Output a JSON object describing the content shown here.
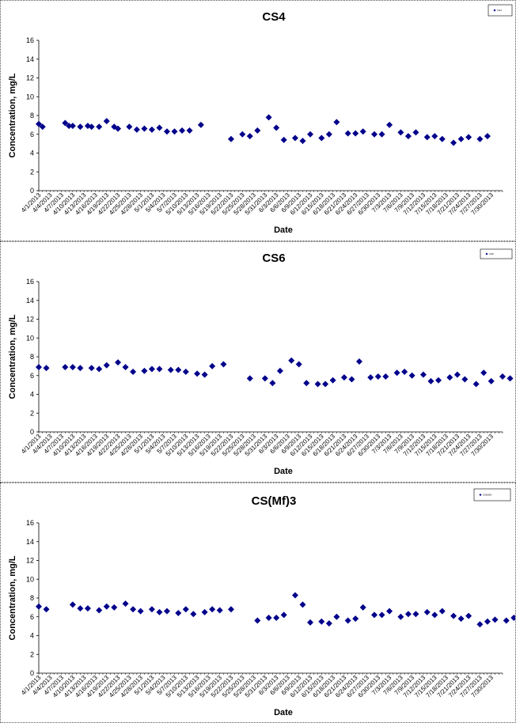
{
  "chart_data": [
    {
      "type": "scatter",
      "title": "CS4",
      "xlabel": "Date",
      "ylabel": "Concentration, mg/L",
      "ylim": [
        0,
        16
      ],
      "ytick_step": 2,
      "x_range": [
        "4/1/2013",
        "8/2/2013"
      ],
      "xtick_labels": [
        "4/1/2013",
        "4/4/2013",
        "4/7/2013",
        "4/10/2013",
        "4/13/2013",
        "4/16/2013",
        "4/19/2013",
        "4/22/2013",
        "4/25/2013",
        "4/28/2013",
        "5/1/2013",
        "5/4/2013",
        "5/7/2013",
        "5/10/2013",
        "5/13/2013",
        "5/16/2013",
        "5/19/2013",
        "5/22/2013",
        "5/25/2013",
        "5/28/2013",
        "5/31/2013",
        "6/3/2013",
        "6/6/2013",
        "6/9/2013",
        "6/12/2013",
        "6/15/2013",
        "6/18/2013",
        "6/21/2013",
        "6/24/2013",
        "6/27/2013",
        "6/30/2013",
        "7/3/2013",
        "7/6/2013",
        "7/9/2013",
        "7/12/2013",
        "7/15/2013",
        "7/18/2013",
        "7/21/2013",
        "7/24/2013",
        "7/27/2013",
        "7/30/2013"
      ],
      "legend": {
        "position": "top-right",
        "entry": "CS4"
      },
      "marker_color": "#00008B",
      "series": [
        {
          "name": "CS4",
          "points": [
            {
              "x": "4/1/2013",
              "y": 7.1
            },
            {
              "x": "4/2/2013",
              "y": 6.8
            },
            {
              "x": "4/8/2013",
              "y": 7.2
            },
            {
              "x": "4/9/2013",
              "y": 6.9
            },
            {
              "x": "4/10/2013",
              "y": 6.9
            },
            {
              "x": "4/12/2013",
              "y": 6.8
            },
            {
              "x": "4/14/2013",
              "y": 6.9
            },
            {
              "x": "4/15/2013",
              "y": 6.8
            },
            {
              "x": "4/17/2013",
              "y": 6.8
            },
            {
              "x": "4/19/2013",
              "y": 7.4
            },
            {
              "x": "4/21/2013",
              "y": 6.8
            },
            {
              "x": "4/22/2013",
              "y": 6.6
            },
            {
              "x": "4/25/2013",
              "y": 6.8
            },
            {
              "x": "4/27/2013",
              "y": 6.5
            },
            {
              "x": "4/29/2013",
              "y": 6.6
            },
            {
              "x": "5/1/2013",
              "y": 6.5
            },
            {
              "x": "5/3/2013",
              "y": 6.7
            },
            {
              "x": "5/5/2013",
              "y": 6.3
            },
            {
              "x": "5/7/2013",
              "y": 6.3
            },
            {
              "x": "5/9/2013",
              "y": 6.4
            },
            {
              "x": "5/11/2013",
              "y": 6.4
            },
            {
              "x": "5/14/2013",
              "y": 7.0
            },
            {
              "x": "5/22/2013",
              "y": 5.5
            },
            {
              "x": "5/25/2013",
              "y": 6.0
            },
            {
              "x": "5/27/2013",
              "y": 5.8
            },
            {
              "x": "5/29/2013",
              "y": 6.4
            },
            {
              "x": "6/1/2013",
              "y": 7.8
            },
            {
              "x": "6/3/2013",
              "y": 6.7
            },
            {
              "x": "6/5/2013",
              "y": 5.4
            },
            {
              "x": "6/8/2013",
              "y": 5.6
            },
            {
              "x": "6/10/2013",
              "y": 5.3
            },
            {
              "x": "6/12/2013",
              "y": 6.0
            },
            {
              "x": "6/15/2013",
              "y": 5.6
            },
            {
              "x": "6/17/2013",
              "y": 6.0
            },
            {
              "x": "6/19/2013",
              "y": 7.3
            },
            {
              "x": "6/22/2013",
              "y": 6.1
            },
            {
              "x": "6/24/2013",
              "y": 6.1
            },
            {
              "x": "6/26/2013",
              "y": 6.3
            },
            {
              "x": "6/29/2013",
              "y": 6.0
            },
            {
              "x": "7/1/2013",
              "y": 6.0
            },
            {
              "x": "7/3/2013",
              "y": 7.0
            },
            {
              "x": "7/6/2013",
              "y": 6.2
            },
            {
              "x": "7/8/2013",
              "y": 5.8
            },
            {
              "x": "7/10/2013",
              "y": 6.2
            },
            {
              "x": "7/13/2013",
              "y": 5.7
            },
            {
              "x": "7/15/2013",
              "y": 5.8
            },
            {
              "x": "7/17/2013",
              "y": 5.5
            },
            {
              "x": "7/20/2013",
              "y": 5.1
            },
            {
              "x": "7/22/2013",
              "y": 5.5
            },
            {
              "x": "7/24/2013",
              "y": 5.7
            },
            {
              "x": "7/27/2013",
              "y": 5.5
            },
            {
              "x": "7/29/2013",
              "y": 5.8
            }
          ]
        }
      ]
    },
    {
      "type": "scatter",
      "title": "CS6",
      "xlabel": "Date",
      "ylabel": "Concentration, mg/L",
      "ylim": [
        0,
        16
      ],
      "ytick_step": 2,
      "x_range": [
        "4/1/2013",
        "8/2/2013"
      ],
      "xtick_labels": [
        "4/1/2013",
        "4/4/2013",
        "4/7/2013",
        "4/10/2013",
        "4/13/2013",
        "4/16/2013",
        "4/19/2013",
        "4/22/2013",
        "4/25/2013",
        "4/28/2013",
        "5/1/2013",
        "5/4/2013",
        "5/7/2013",
        "5/10/2013",
        "5/13/2013",
        "5/16/2013",
        "5/19/2013",
        "5/22/2013",
        "5/25/2013",
        "5/28/2013",
        "5/31/2013",
        "6/3/2013",
        "6/6/2013",
        "6/9/2013",
        "6/12/2013",
        "6/15/2013",
        "6/18/2013",
        "6/21/2013",
        "6/24/2013",
        "6/27/2013",
        "6/30/2013",
        "7/3/2013",
        "7/6/2013",
        "7/9/2013",
        "7/12/2013",
        "7/15/2013",
        "7/18/2013",
        "7/21/2013",
        "7/24/2013",
        "7/27/2013",
        "7/30/2013"
      ],
      "legend": {
        "position": "top-right",
        "entry": "CS6"
      },
      "marker_color": "#00008B",
      "series": [
        {
          "name": "CS6",
          "points": [
            {
              "x": "4/1/2013",
              "y": 6.9
            },
            {
              "x": "4/3/2013",
              "y": 6.8
            },
            {
              "x": "4/8/2013",
              "y": 6.9
            },
            {
              "x": "4/10/2013",
              "y": 6.9
            },
            {
              "x": "4/12/2013",
              "y": 6.8
            },
            {
              "x": "4/15/2013",
              "y": 6.8
            },
            {
              "x": "4/17/2013",
              "y": 6.7
            },
            {
              "x": "4/19/2013",
              "y": 7.1
            },
            {
              "x": "4/22/2013",
              "y": 7.4
            },
            {
              "x": "4/24/2013",
              "y": 6.9
            },
            {
              "x": "4/26/2013",
              "y": 6.4
            },
            {
              "x": "4/29/2013",
              "y": 6.5
            },
            {
              "x": "5/1/2013",
              "y": 6.7
            },
            {
              "x": "5/3/2013",
              "y": 6.7
            },
            {
              "x": "5/6/2013",
              "y": 6.6
            },
            {
              "x": "5/8/2013",
              "y": 6.6
            },
            {
              "x": "5/10/2013",
              "y": 6.4
            },
            {
              "x": "5/13/2013",
              "y": 6.2
            },
            {
              "x": "5/15/2013",
              "y": 6.1
            },
            {
              "x": "5/17/2013",
              "y": 7.0
            },
            {
              "x": "5/20/2013",
              "y": 7.2
            },
            {
              "x": "5/27/2013",
              "y": 5.7
            },
            {
              "x": "5/31/2013",
              "y": 5.7
            },
            {
              "x": "6/2/2013",
              "y": 5.2
            },
            {
              "x": "6/4/2013",
              "y": 6.5
            },
            {
              "x": "6/7/2013",
              "y": 7.6
            },
            {
              "x": "6/9/2013",
              "y": 7.2
            },
            {
              "x": "6/11/2013",
              "y": 5.2
            },
            {
              "x": "6/14/2013",
              "y": 5.1
            },
            {
              "x": "6/16/2013",
              "y": 5.1
            },
            {
              "x": "6/18/2013",
              "y": 5.5
            },
            {
              "x": "6/21/2013",
              "y": 5.8
            },
            {
              "x": "6/23/2013",
              "y": 5.6
            },
            {
              "x": "6/25/2013",
              "y": 7.5
            },
            {
              "x": "6/28/2013",
              "y": 5.8
            },
            {
              "x": "6/30/2013",
              "y": 5.9
            },
            {
              "x": "7/2/2013",
              "y": 5.9
            },
            {
              "x": "7/5/2013",
              "y": 6.3
            },
            {
              "x": "7/7/2013",
              "y": 6.4
            },
            {
              "x": "7/9/2013",
              "y": 6.0
            },
            {
              "x": "7/12/2013",
              "y": 6.1
            },
            {
              "x": "7/14/2013",
              "y": 5.4
            },
            {
              "x": "7/16/2013",
              "y": 5.5
            },
            {
              "x": "7/19/2013",
              "y": 5.8
            },
            {
              "x": "7/21/2013",
              "y": 6.1
            },
            {
              "x": "7/23/2013",
              "y": 5.6
            },
            {
              "x": "7/26/2013",
              "y": 5.1
            },
            {
              "x": "7/28/2013",
              "y": 6.3
            },
            {
              "x": "7/30/2013",
              "y": 5.4
            },
            {
              "x": "8/2/2013",
              "y": 5.9
            },
            {
              "x": "8/4/2013",
              "y": 5.7
            }
          ]
        }
      ]
    },
    {
      "type": "scatter",
      "title": "CS(Mf)3",
      "xlabel": "Date",
      "ylabel": "Concentration, mg/L",
      "ylim": [
        0,
        16
      ],
      "ytick_step": 2,
      "x_range": [
        "4/1/2013",
        "8/2/2013"
      ],
      "xtick_labels": [
        "4/1/2013",
        "4/4/2013",
        "4/7/2013",
        "4/10/2013",
        "4/13/2013",
        "4/16/2013",
        "4/19/2013",
        "4/22/2013",
        "4/25/2013",
        "4/28/2013",
        "5/1/2013",
        "5/4/2013",
        "5/7/2013",
        "5/10/2013",
        "5/13/2013",
        "5/16/2013",
        "5/19/2013",
        "5/22/2013",
        "5/25/2013",
        "5/28/2013",
        "5/31/2013",
        "6/3/2013",
        "6/6/2013",
        "6/9/2013",
        "6/12/2013",
        "6/15/2013",
        "6/18/2013",
        "6/21/2013",
        "6/24/2013",
        "6/27/2013",
        "6/30/2013",
        "7/3/2013",
        "7/6/2013",
        "7/9/2013",
        "7/12/2013",
        "7/15/2013",
        "7/18/2013",
        "7/21/2013",
        "7/24/2013",
        "7/27/2013",
        "7/30/2013"
      ],
      "legend": {
        "position": "top-right",
        "entry": "CS(Mf)3"
      },
      "marker_color": "#00008B",
      "series": [
        {
          "name": "CS(Mf)3",
          "points": [
            {
              "x": "4/1/2013",
              "y": 7.1
            },
            {
              "x": "4/3/2013",
              "y": 6.8
            },
            {
              "x": "4/10/2013",
              "y": 7.3
            },
            {
              "x": "4/12/2013",
              "y": 6.9
            },
            {
              "x": "4/14/2013",
              "y": 6.9
            },
            {
              "x": "4/17/2013",
              "y": 6.7
            },
            {
              "x": "4/19/2013",
              "y": 7.1
            },
            {
              "x": "4/21/2013",
              "y": 7.0
            },
            {
              "x": "4/24/2013",
              "y": 7.4
            },
            {
              "x": "4/26/2013",
              "y": 6.8
            },
            {
              "x": "4/28/2013",
              "y": 6.6
            },
            {
              "x": "5/1/2013",
              "y": 6.8
            },
            {
              "x": "5/3/2013",
              "y": 6.5
            },
            {
              "x": "5/5/2013",
              "y": 6.6
            },
            {
              "x": "5/8/2013",
              "y": 6.4
            },
            {
              "x": "5/10/2013",
              "y": 6.8
            },
            {
              "x": "5/12/2013",
              "y": 6.3
            },
            {
              "x": "5/15/2013",
              "y": 6.5
            },
            {
              "x": "5/17/2013",
              "y": 6.8
            },
            {
              "x": "5/19/2013",
              "y": 6.7
            },
            {
              "x": "5/22/2013",
              "y": 6.8
            },
            {
              "x": "5/29/2013",
              "y": 5.6
            },
            {
              "x": "6/1/2013",
              "y": 5.9
            },
            {
              "x": "6/3/2013",
              "y": 5.9
            },
            {
              "x": "6/5/2013",
              "y": 6.2
            },
            {
              "x": "6/8/2013",
              "y": 8.3
            },
            {
              "x": "6/10/2013",
              "y": 7.3
            },
            {
              "x": "6/12/2013",
              "y": 5.4
            },
            {
              "x": "6/15/2013",
              "y": 5.5
            },
            {
              "x": "6/17/2013",
              "y": 5.3
            },
            {
              "x": "6/19/2013",
              "y": 6.0
            },
            {
              "x": "6/22/2013",
              "y": 5.6
            },
            {
              "x": "6/24/2013",
              "y": 5.8
            },
            {
              "x": "6/26/2013",
              "y": 7.0
            },
            {
              "x": "6/29/2013",
              "y": 6.2
            },
            {
              "x": "7/1/2013",
              "y": 6.2
            },
            {
              "x": "7/3/2013",
              "y": 6.6
            },
            {
              "x": "7/6/2013",
              "y": 6.0
            },
            {
              "x": "7/8/2013",
              "y": 6.3
            },
            {
              "x": "7/10/2013",
              "y": 6.3
            },
            {
              "x": "7/13/2013",
              "y": 6.5
            },
            {
              "x": "7/15/2013",
              "y": 6.2
            },
            {
              "x": "7/17/2013",
              "y": 6.6
            },
            {
              "x": "7/20/2013",
              "y": 6.1
            },
            {
              "x": "7/22/2013",
              "y": 5.8
            },
            {
              "x": "7/24/2013",
              "y": 6.1
            },
            {
              "x": "7/27/2013",
              "y": 5.2
            },
            {
              "x": "7/29/2013",
              "y": 5.5
            },
            {
              "x": "7/31/2013",
              "y": 5.7
            },
            {
              "x": "8/3/2013",
              "y": 5.6
            },
            {
              "x": "8/5/2013",
              "y": 5.9
            }
          ]
        }
      ]
    }
  ]
}
